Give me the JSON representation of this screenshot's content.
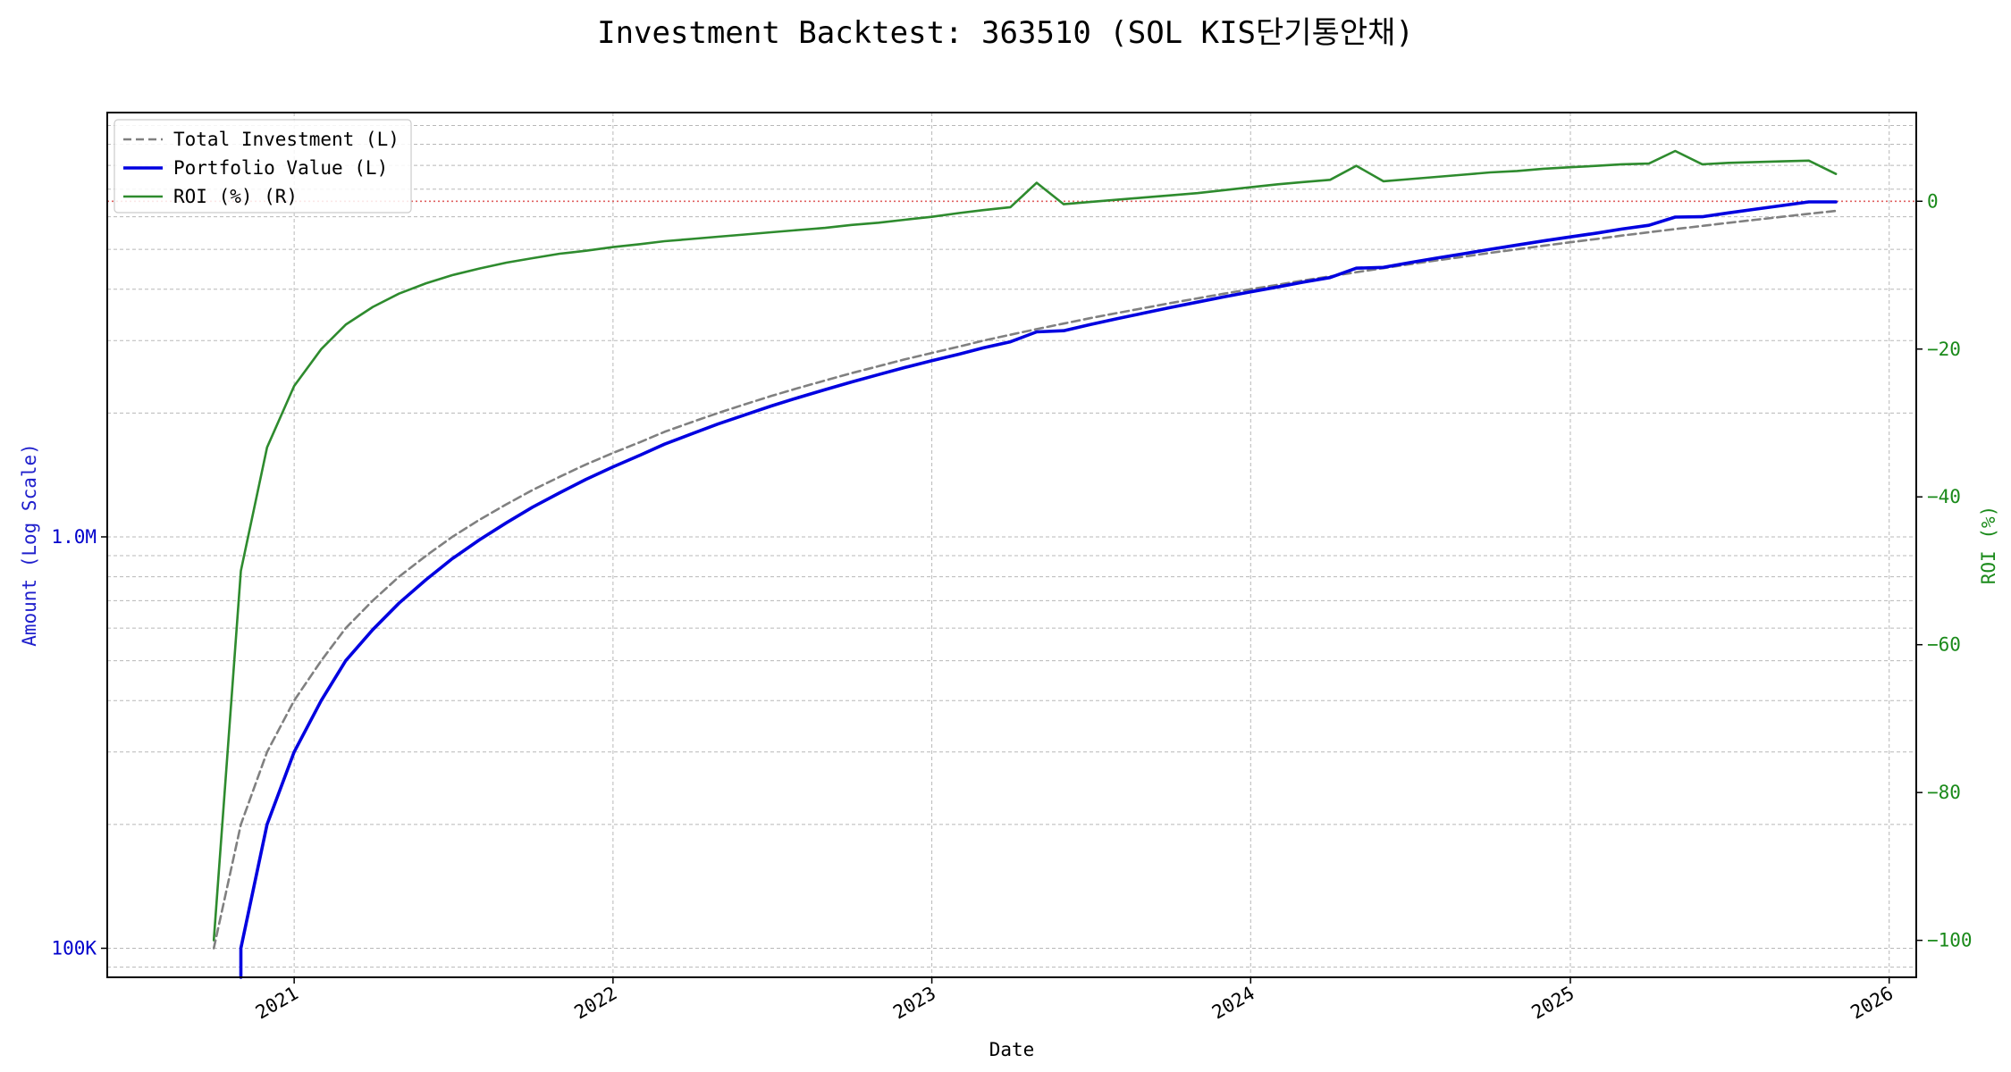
{
  "chart_data": {
    "type": "line",
    "title": "Investment Backtest: 363510 (SOL KIS단기통안채)",
    "xlabel": "Date",
    "ylabel_left": "Amount (Log Scale)",
    "ylabel_right": "ROI (%)",
    "left_axis": {
      "scale": "log",
      "range": [
        85000,
        10750000
      ],
      "tick_labels": [
        {
          "value": 100000,
          "label": "100K"
        },
        {
          "value": 1000000,
          "label": "1.0M"
        }
      ],
      "color": "#0000cc"
    },
    "right_axis": {
      "scale": "linear",
      "range": [
        -105,
        12
      ],
      "ticks": [
        0,
        -20,
        -40,
        -60,
        -80,
        -100
      ],
      "tick_labels": [
        "0",
        "−20",
        "−40",
        "−60",
        "−80",
        "−100"
      ],
      "color": "#1a8a1a"
    },
    "x_axis": {
      "range": [
        "2020-06-01",
        "2026-02-01"
      ],
      "ticks": [
        "2021-01-01",
        "2022-01-01",
        "2023-01-01",
        "2024-01-01",
        "2025-01-01",
        "2026-01-01"
      ],
      "tick_labels": [
        "2021",
        "2022",
        "2023",
        "2024",
        "2025",
        "2026"
      ]
    },
    "grid": true,
    "zero_line": {
      "value": 0,
      "color": "#e06060"
    },
    "legend": {
      "position": "top-left",
      "entries": [
        {
          "label": "Total Investment (L)",
          "color": "#808080",
          "style": "dashed"
        },
        {
          "label": "Portfolio Value (L)",
          "color": "#0000e0",
          "style": "solid"
        },
        {
          "label": "ROI (%) (R)",
          "color": "#2e8b2e",
          "style": "solid"
        }
      ]
    },
    "series": [
      {
        "name": "Total Investment (L)",
        "axis": "left",
        "points": [
          [
            "2020-10-01",
            100000
          ],
          [
            "2020-11-01",
            200000
          ],
          [
            "2020-12-01",
            300000
          ],
          [
            "2021-01-01",
            400000
          ],
          [
            "2021-02-01",
            500000
          ],
          [
            "2021-03-01",
            600000
          ],
          [
            "2021-04-01",
            700000
          ],
          [
            "2021-05-01",
            800000
          ],
          [
            "2021-06-01",
            900000
          ],
          [
            "2021-07-01",
            1000000
          ],
          [
            "2021-08-01",
            1100000
          ],
          [
            "2021-09-01",
            1200000
          ],
          [
            "2021-10-01",
            1300000
          ],
          [
            "2021-11-01",
            1400000
          ],
          [
            "2021-12-01",
            1500000
          ],
          [
            "2022-01-01",
            1600000
          ],
          [
            "2022-02-01",
            1700000
          ],
          [
            "2022-03-01",
            1800000
          ],
          [
            "2022-04-01",
            1900000
          ],
          [
            "2022-05-01",
            2000000
          ],
          [
            "2022-06-01",
            2100000
          ],
          [
            "2022-07-01",
            2200000
          ],
          [
            "2022-08-01",
            2300000
          ],
          [
            "2022-09-01",
            2400000
          ],
          [
            "2022-10-01",
            2500000
          ],
          [
            "2022-11-01",
            2600000
          ],
          [
            "2022-12-01",
            2700000
          ],
          [
            "2023-01-01",
            2800000
          ],
          [
            "2023-02-01",
            2900000
          ],
          [
            "2023-03-01",
            3000000
          ],
          [
            "2023-04-01",
            3100000
          ],
          [
            "2023-05-01",
            3200000
          ],
          [
            "2023-06-01",
            3300000
          ],
          [
            "2023-07-01",
            3400000
          ],
          [
            "2023-08-01",
            3500000
          ],
          [
            "2023-09-01",
            3600000
          ],
          [
            "2023-10-01",
            3700000
          ],
          [
            "2023-11-01",
            3800000
          ],
          [
            "2023-12-01",
            3900000
          ],
          [
            "2024-01-01",
            4000000
          ],
          [
            "2024-02-01",
            4100000
          ],
          [
            "2024-03-01",
            4200000
          ],
          [
            "2024-04-01",
            4300000
          ],
          [
            "2024-05-01",
            4400000
          ],
          [
            "2024-06-01",
            4500000
          ],
          [
            "2024-07-01",
            4600000
          ],
          [
            "2024-08-01",
            4700000
          ],
          [
            "2024-09-01",
            4800000
          ],
          [
            "2024-10-01",
            4900000
          ],
          [
            "2024-11-01",
            5000000
          ],
          [
            "2024-12-01",
            5100000
          ],
          [
            "2025-01-01",
            5200000
          ],
          [
            "2025-02-01",
            5300000
          ],
          [
            "2025-03-01",
            5400000
          ],
          [
            "2025-04-01",
            5500000
          ],
          [
            "2025-05-01",
            5600000
          ],
          [
            "2025-06-01",
            5700000
          ],
          [
            "2025-07-01",
            5800000
          ],
          [
            "2025-08-01",
            5900000
          ],
          [
            "2025-09-01",
            6000000
          ],
          [
            "2025-10-01",
            6100000
          ],
          [
            "2025-11-01",
            6200000
          ]
        ]
      },
      {
        "name": "Portfolio Value (L)",
        "axis": "left",
        "points": [
          [
            "2020-11-01",
            80000
          ],
          [
            "2020-11-01",
            100000
          ],
          [
            "2020-12-01",
            200000
          ],
          [
            "2021-01-01",
            300000
          ],
          [
            "2021-02-01",
            400000
          ],
          [
            "2021-03-01",
            500000
          ],
          [
            "2021-04-01",
            595000
          ],
          [
            "2021-05-01",
            690000
          ],
          [
            "2021-06-01",
            787000
          ],
          [
            "2021-07-01",
            885000
          ],
          [
            "2021-08-01",
            983000
          ],
          [
            "2021-09-01",
            1082000
          ],
          [
            "2021-10-01",
            1181000
          ],
          [
            "2021-11-01",
            1280000
          ],
          [
            "2021-12-01",
            1380000
          ],
          [
            "2022-01-01",
            1480000
          ],
          [
            "2022-02-01",
            1580000
          ],
          [
            "2022-03-01",
            1680000
          ],
          [
            "2022-04-01",
            1780000
          ],
          [
            "2022-05-01",
            1880000
          ],
          [
            "2022-06-01",
            1980000
          ],
          [
            "2022-07-01",
            2080000
          ],
          [
            "2022-08-01",
            2180000
          ],
          [
            "2022-09-01",
            2280000
          ],
          [
            "2022-10-01",
            2380000
          ],
          [
            "2022-11-01",
            2480000
          ],
          [
            "2022-12-01",
            2580000
          ],
          [
            "2023-01-01",
            2680000
          ],
          [
            "2023-02-01",
            2780000
          ],
          [
            "2023-03-01",
            2880000
          ],
          [
            "2023-04-01",
            2980000
          ],
          [
            "2023-05-01",
            3150000
          ],
          [
            "2023-06-01",
            3170000
          ],
          [
            "2023-07-01",
            3280000
          ],
          [
            "2023-08-01",
            3390000
          ],
          [
            "2023-09-01",
            3500000
          ],
          [
            "2023-10-01",
            3610000
          ],
          [
            "2023-11-01",
            3720000
          ],
          [
            "2023-12-01",
            3830000
          ],
          [
            "2024-01-01",
            3940000
          ],
          [
            "2024-02-01",
            4050000
          ],
          [
            "2024-03-01",
            4160000
          ],
          [
            "2024-04-01",
            4270000
          ],
          [
            "2024-05-01",
            4500000
          ],
          [
            "2024-06-01",
            4520000
          ],
          [
            "2024-07-01",
            4640000
          ],
          [
            "2024-08-01",
            4760000
          ],
          [
            "2024-09-01",
            4880000
          ],
          [
            "2024-10-01",
            5000000
          ],
          [
            "2024-11-01",
            5120000
          ],
          [
            "2024-12-01",
            5240000
          ],
          [
            "2025-01-01",
            5360000
          ],
          [
            "2025-02-01",
            5480000
          ],
          [
            "2025-03-01",
            5600000
          ],
          [
            "2025-04-01",
            5720000
          ],
          [
            "2025-05-01",
            5990000
          ],
          [
            "2025-06-01",
            6000000
          ],
          [
            "2025-07-01",
            6130000
          ],
          [
            "2025-08-01",
            6260000
          ],
          [
            "2025-09-01",
            6390000
          ],
          [
            "2025-10-01",
            6520000
          ],
          [
            "2025-11-01",
            6520000
          ]
        ]
      },
      {
        "name": "ROI (%) (R)",
        "axis": "right",
        "points": [
          [
            "2020-10-01",
            -100
          ],
          [
            "2020-11-01",
            -50
          ],
          [
            "2020-12-01",
            -33.3
          ],
          [
            "2021-01-01",
            -25
          ],
          [
            "2021-02-01",
            -20
          ],
          [
            "2021-03-01",
            -16.7
          ],
          [
            "2021-04-01",
            -14.3
          ],
          [
            "2021-05-01",
            -12.5
          ],
          [
            "2021-06-01",
            -11.1
          ],
          [
            "2021-07-01",
            -10.0
          ],
          [
            "2021-08-01",
            -9.1
          ],
          [
            "2021-09-01",
            -8.3
          ],
          [
            "2021-10-01",
            -7.7
          ],
          [
            "2021-11-01",
            -7.1
          ],
          [
            "2021-12-01",
            -6.7
          ],
          [
            "2022-01-01",
            -6.2
          ],
          [
            "2022-02-01",
            -5.8
          ],
          [
            "2022-03-01",
            -5.4
          ],
          [
            "2022-04-01",
            -5.1
          ],
          [
            "2022-05-01",
            -4.8
          ],
          [
            "2022-06-01",
            -4.5
          ],
          [
            "2022-07-01",
            -4.2
          ],
          [
            "2022-08-01",
            -3.9
          ],
          [
            "2022-09-01",
            -3.6
          ],
          [
            "2022-10-01",
            -3.2
          ],
          [
            "2022-11-01",
            -2.9
          ],
          [
            "2022-12-01",
            -2.5
          ],
          [
            "2023-01-01",
            -2.1
          ],
          [
            "2023-02-01",
            -1.6
          ],
          [
            "2023-03-01",
            -1.2
          ],
          [
            "2023-04-01",
            -0.8
          ],
          [
            "2023-05-01",
            2.5
          ],
          [
            "2023-06-01",
            -0.4
          ],
          [
            "2023-07-01",
            -0.1
          ],
          [
            "2023-08-01",
            0.2
          ],
          [
            "2023-09-01",
            0.5
          ],
          [
            "2023-10-01",
            0.8
          ],
          [
            "2023-11-01",
            1.1
          ],
          [
            "2023-12-01",
            1.5
          ],
          [
            "2024-01-01",
            1.9
          ],
          [
            "2024-02-01",
            2.3
          ],
          [
            "2024-03-01",
            2.6
          ],
          [
            "2024-04-01",
            2.9
          ],
          [
            "2024-05-01",
            4.8
          ],
          [
            "2024-06-01",
            2.7
          ],
          [
            "2024-07-01",
            3.0
          ],
          [
            "2024-08-01",
            3.3
          ],
          [
            "2024-09-01",
            3.6
          ],
          [
            "2024-10-01",
            3.9
          ],
          [
            "2024-11-01",
            4.1
          ],
          [
            "2024-12-01",
            4.4
          ],
          [
            "2025-01-01",
            4.6
          ],
          [
            "2025-02-01",
            4.8
          ],
          [
            "2025-03-01",
            5.0
          ],
          [
            "2025-04-01",
            5.1
          ],
          [
            "2025-05-01",
            6.8
          ],
          [
            "2025-06-01",
            5.0
          ],
          [
            "2025-07-01",
            5.2
          ],
          [
            "2025-08-01",
            5.3
          ],
          [
            "2025-09-01",
            5.4
          ],
          [
            "2025-10-01",
            5.5
          ],
          [
            "2025-11-01",
            3.7
          ]
        ]
      }
    ]
  }
}
